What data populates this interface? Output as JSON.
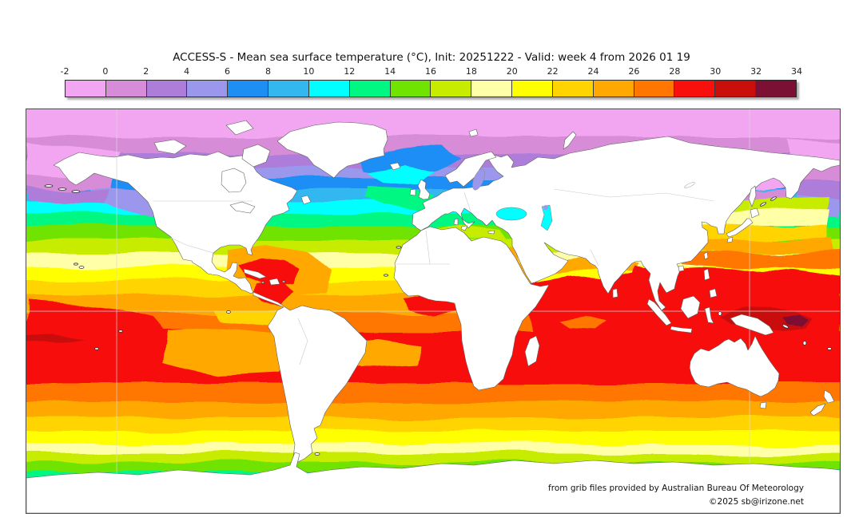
{
  "title": "ACCESS-S - Mean sea surface temperature (°C), Init: 20251222 - Valid: week 4 from 2026 01 19",
  "colorbar": {
    "ticks": [
      "-2",
      "0",
      "2",
      "4",
      "6",
      "8",
      "10",
      "12",
      "14",
      "16",
      "18",
      "20",
      "22",
      "24",
      "26",
      "28",
      "30",
      "32",
      "34"
    ],
    "colors": [
      "#f2a6f1",
      "#d78cd8",
      "#ad7dd9",
      "#9b97ec",
      "#1e8ef5",
      "#33b7f0",
      "#00ffff",
      "#00f782",
      "#70e400",
      "#c8ec00",
      "#ffffa8",
      "#ffff00",
      "#ffd400",
      "#ffa800",
      "#ff7700",
      "#f8100c",
      "#c90e0b",
      "#7b1034"
    ]
  },
  "attribution": {
    "line1": "from grib files provided by Australian Bureau Of Meteorology",
    "line2": "©2025 sb@irizone.net"
  },
  "chart_data": {
    "type": "heatmap",
    "title": "ACCESS-S - Mean sea surface temperature (°C), Init: 20251222 - Valid: week 4 from 2026 01 19",
    "units": "°C",
    "levels": [
      -2,
      0,
      2,
      4,
      6,
      8,
      10,
      12,
      14,
      16,
      18,
      20,
      22,
      24,
      26,
      28,
      30,
      32,
      34
    ],
    "palette": [
      "#f2a6f1",
      "#d78cd8",
      "#ad7dd9",
      "#9b97ec",
      "#1e8ef5",
      "#33b7f0",
      "#00ffff",
      "#00f782",
      "#70e400",
      "#c8ec00",
      "#ffffa8",
      "#ffff00",
      "#ffd400",
      "#ffa800",
      "#ff7700",
      "#f8100c",
      "#c90e0b",
      "#7b1034"
    ],
    "projection": "equirectangular world map, 180W-180E, 90N-90S",
    "zonal_mean_sst": {
      "lat": [
        75,
        65,
        55,
        45,
        35,
        25,
        15,
        5,
        0,
        -5,
        -15,
        -25,
        -35,
        -45,
        -55,
        -65,
        -75
      ],
      "sst_c": [
        -1,
        1,
        4,
        8,
        13,
        19,
        24,
        27,
        28,
        28,
        28,
        26,
        20,
        14,
        8,
        2,
        -1
      ]
    },
    "features": [
      "West Pacific / Papua New Guinea warm pool 30-32 °C with core above 32 °C",
      "Equatorial Indian Ocean and Bay of Bengal 28-30 °C",
      "Caribbean Sea 28-30 °C",
      "Gulf of Guinea 28-30 °C",
      "South Pacific Convergence Zone red wedge 28-30 °C",
      "Eastern equatorial Pacific cold tongue 22-26 °C",
      "Mediterranean Sea 14-18 °C, Black Sea 10-12 °C, Baltic Sea 4-6 °C",
      "Sea of Okhotsk and Bering Sea below 2 °C",
      "Polar oceans below 0 °C, Antarctica and sea-ice masked white"
    ],
    "legend_position": "horizontal colorbar above map"
  },
  "map": {
    "zonal_bands": [
      {
        "to": 0.115,
        "level": 0
      },
      {
        "to": 0.15,
        "level": 1
      },
      {
        "to": 0.18,
        "level": 2
      },
      {
        "to": 0.205,
        "level": 3
      },
      {
        "to": 0.232,
        "level": 4
      },
      {
        "to": 0.258,
        "level": 5
      },
      {
        "to": 0.284,
        "level": 6
      },
      {
        "to": 0.312,
        "level": 7
      },
      {
        "to": 0.342,
        "level": 8
      },
      {
        "to": 0.372,
        "level": 9
      },
      {
        "to": 0.402,
        "level": 10
      },
      {
        "to": 0.432,
        "level": 11
      },
      {
        "to": 0.465,
        "level": 12
      },
      {
        "to": 0.505,
        "level": 13
      },
      {
        "to": 0.545,
        "level": 14
      },
      {
        "to": 0.66,
        "level": 15
      },
      {
        "to": 0.7,
        "level": 14
      },
      {
        "to": 0.735,
        "level": 13
      },
      {
        "to": 0.765,
        "level": 12
      },
      {
        "to": 0.795,
        "level": 11
      },
      {
        "to": 0.815,
        "level": 10
      },
      {
        "to": 0.835,
        "level": 9
      },
      {
        "to": 0.855,
        "level": 8
      },
      {
        "to": 0.875,
        "level": 7
      },
      {
        "to": 0.9,
        "level": 6
      },
      {
        "to": 0.92,
        "level": 5
      },
      {
        "to": 0.94,
        "level": 4
      },
      {
        "to": 0.955,
        "level": 3
      },
      {
        "to": 0.97,
        "level": 2
      },
      {
        "to": 0.985,
        "level": 1
      },
      {
        "to": 1.0,
        "level": 0
      }
    ]
  }
}
